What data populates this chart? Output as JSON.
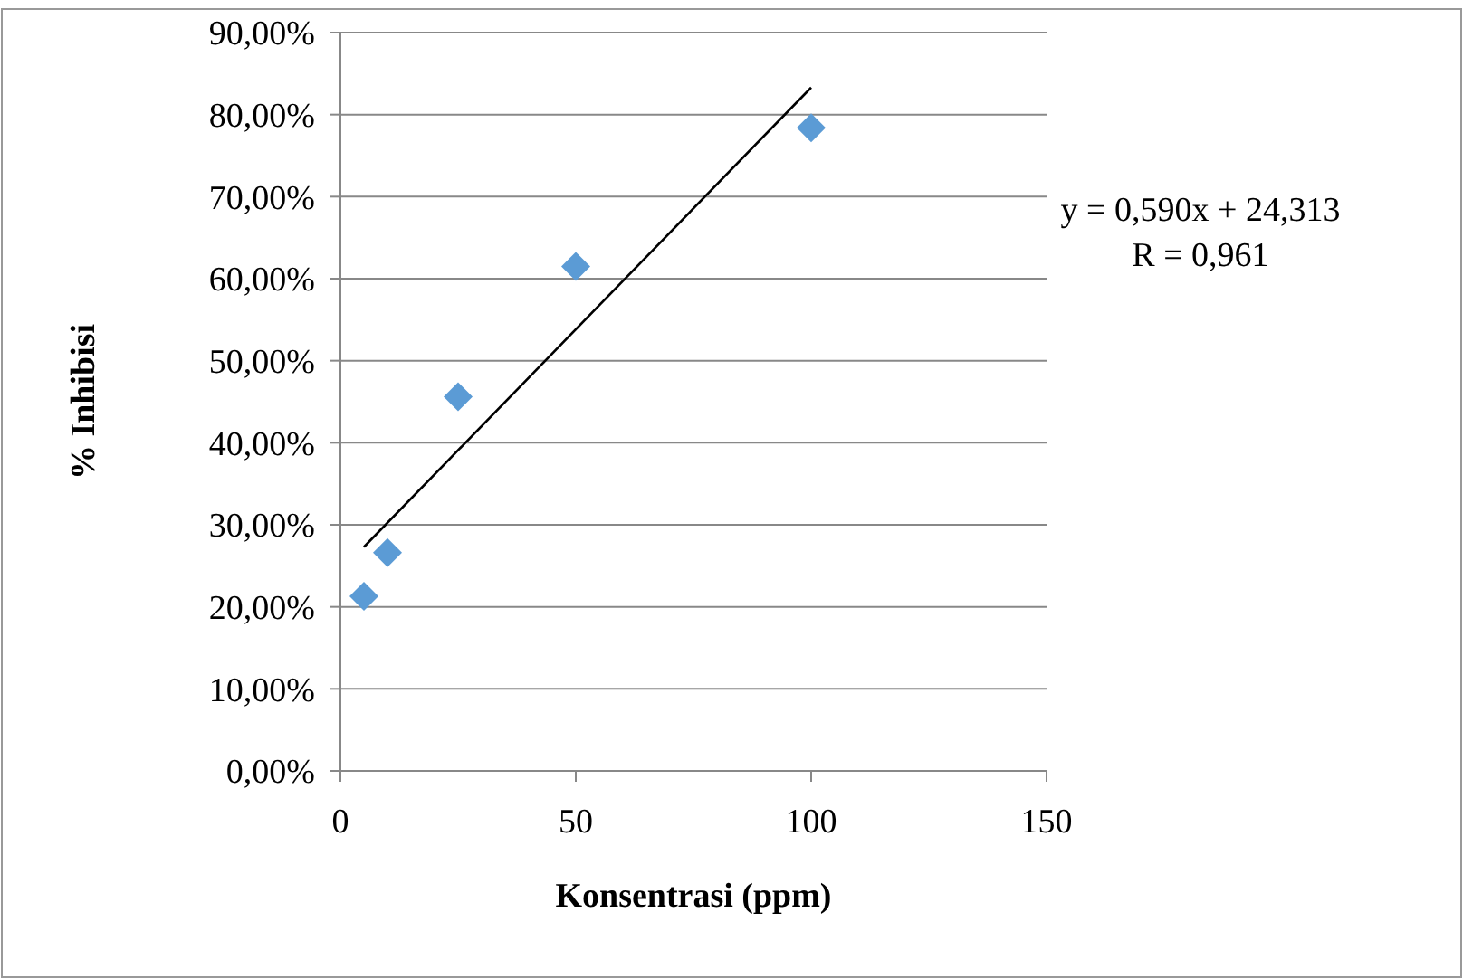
{
  "chart_data": {
    "type": "scatter",
    "xlabel": "Konsentrasi (ppm)",
    "ylabel": "% Inhibisi",
    "x": [
      5,
      10,
      25,
      50,
      100
    ],
    "series": [
      {
        "color": "#5b9bd5",
        "values": [
          21.3,
          26.6,
          45.6,
          61.5,
          78.4
        ],
        "marker": "diamond"
      },
      {
        "type": "line",
        "color": "#000000",
        "x": [
          5,
          100
        ],
        "values": [
          27.3,
          83.3
        ],
        "marker": "none"
      }
    ],
    "xlim": [
      0,
      150
    ],
    "xticks": [
      0,
      50,
      100,
      150
    ],
    "ylim": [
      0,
      90
    ],
    "yticks": [
      {
        "value": 0,
        "label": "0,00%"
      },
      {
        "value": 10,
        "label": "10,00%"
      },
      {
        "value": 20,
        "label": "20,00%"
      },
      {
        "value": 30,
        "label": "30,00%"
      },
      {
        "value": 40,
        "label": "40,00%"
      },
      {
        "value": 50,
        "label": "50,00%"
      },
      {
        "value": 60,
        "label": "60,00%"
      },
      {
        "value": 70,
        "label": "70,00%"
      },
      {
        "value": 80,
        "label": "80,00%"
      },
      {
        "value": 90,
        "label": "90,00%"
      }
    ],
    "grid": "y",
    "annotations": [
      "y = 0,590x + 24,313",
      "R = 0,961"
    ]
  }
}
